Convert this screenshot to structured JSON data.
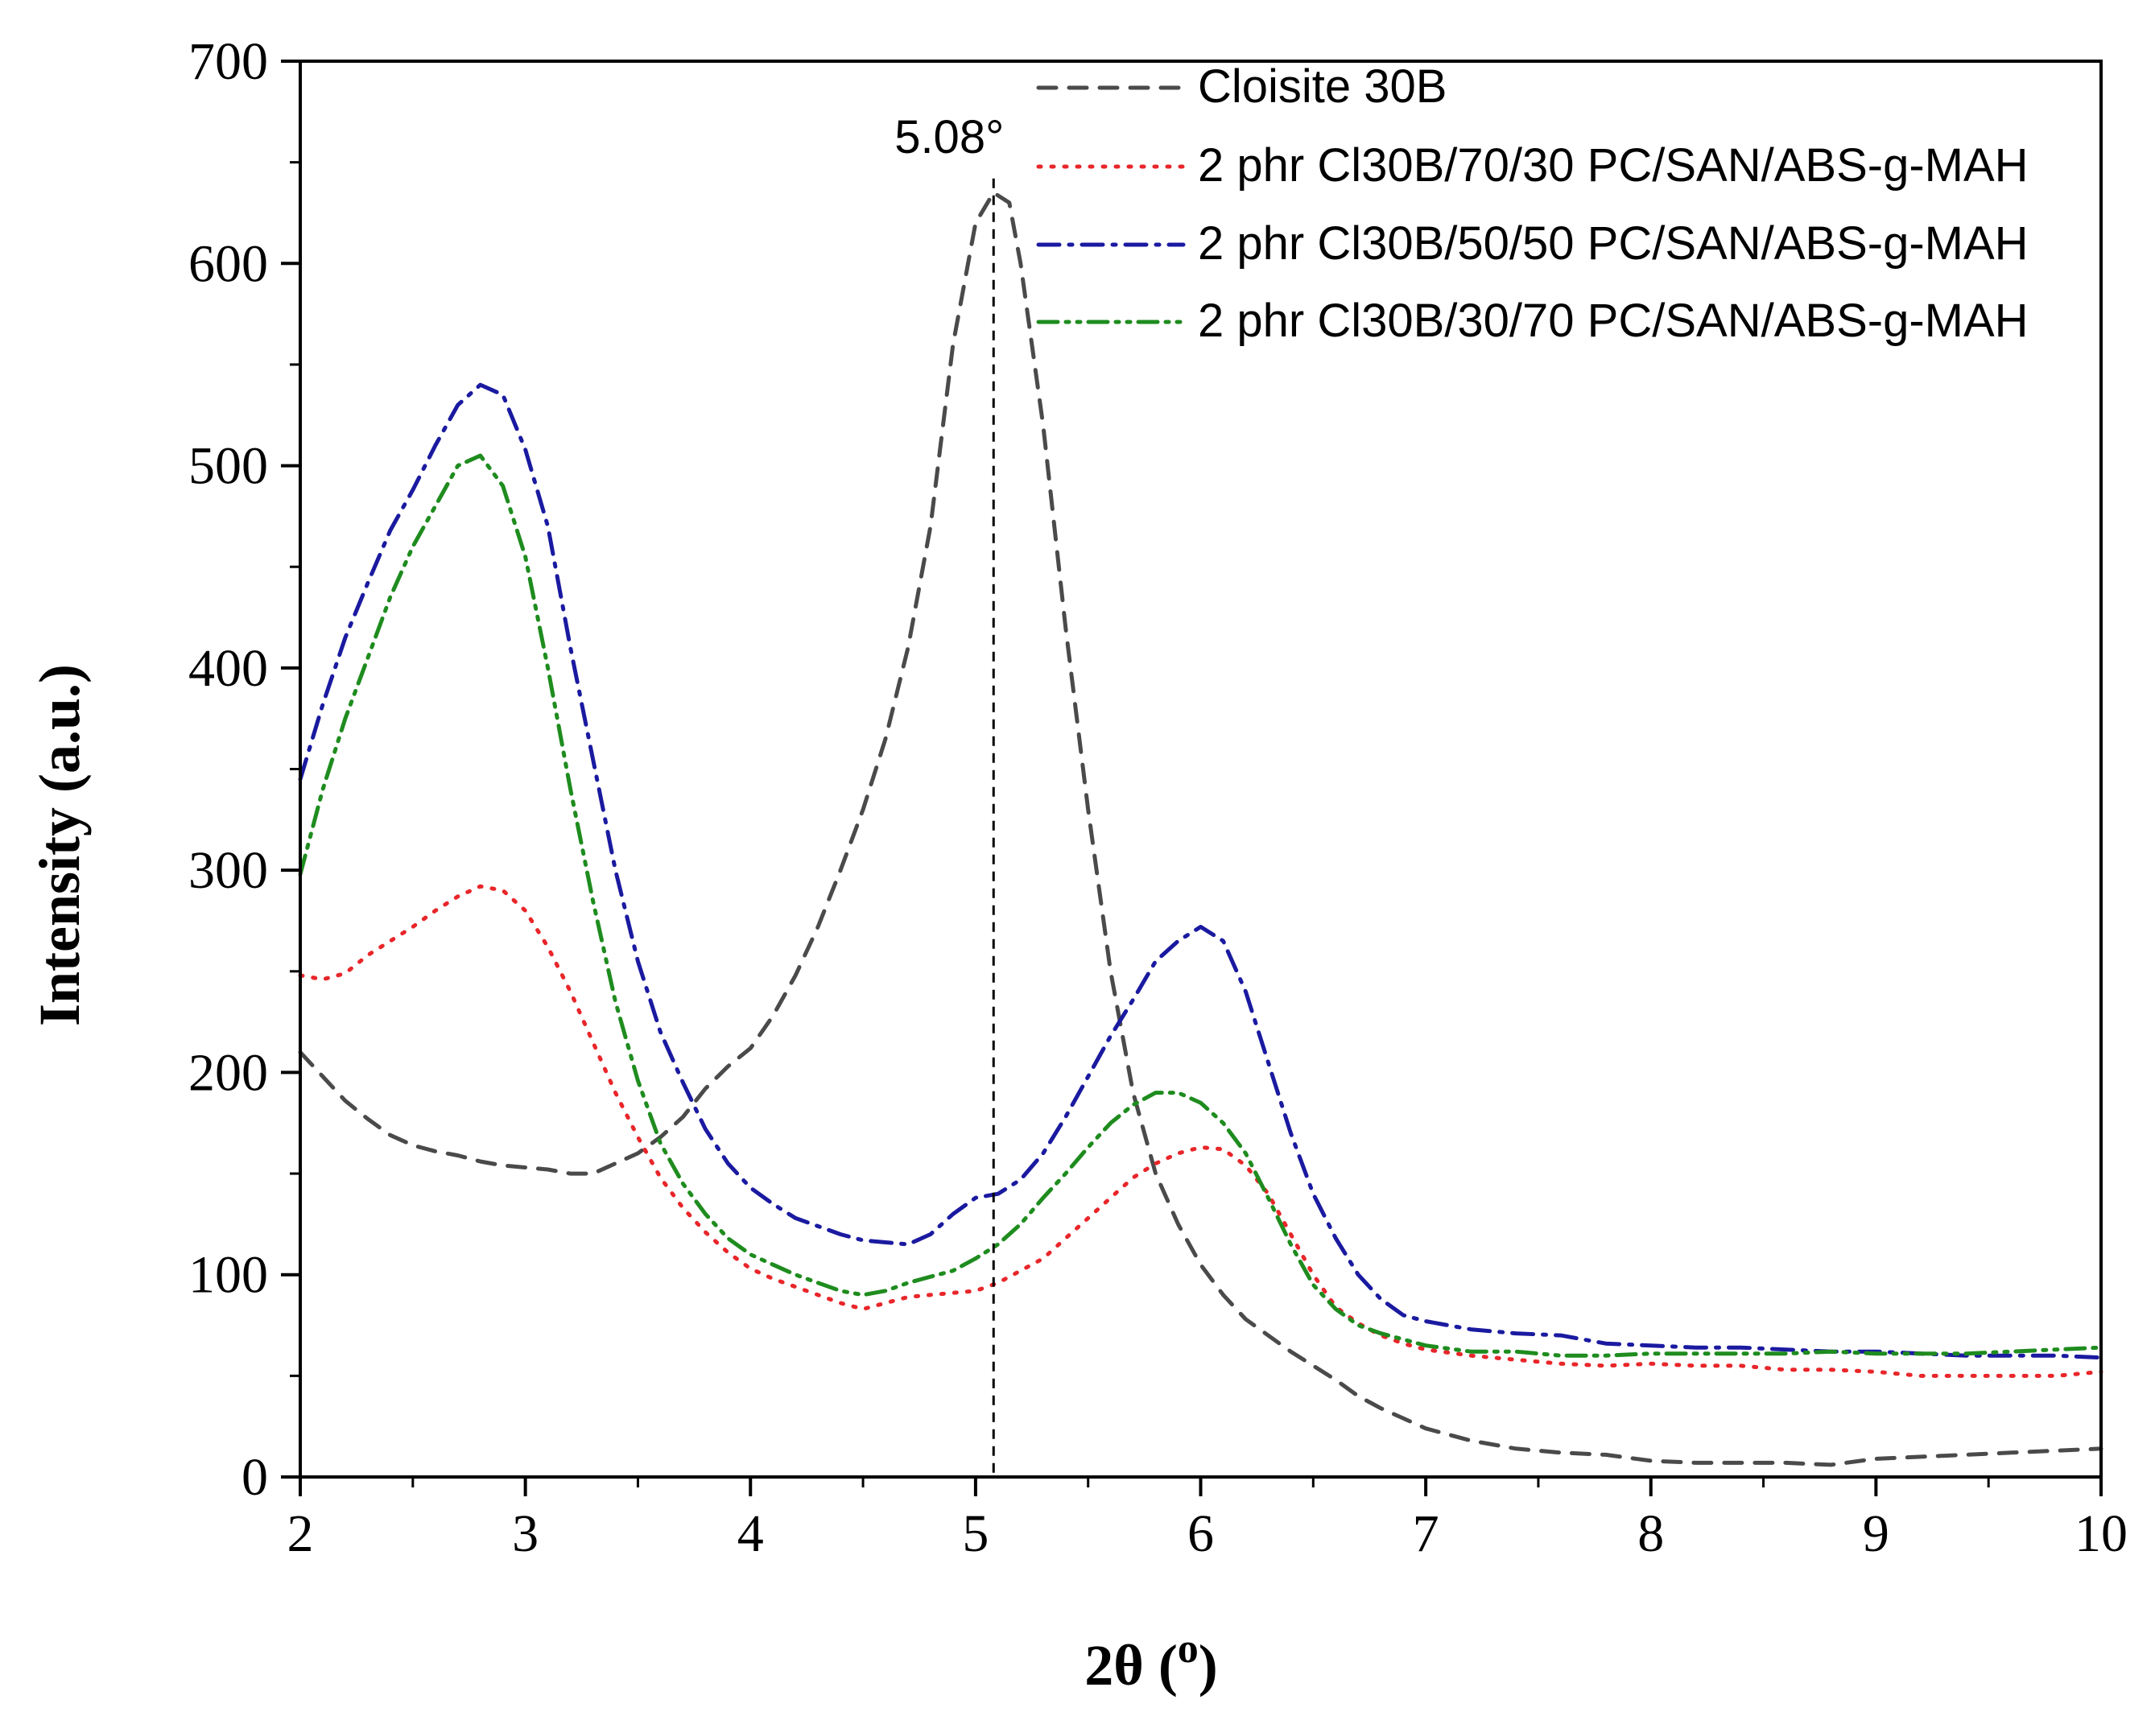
{
  "chart_data": {
    "type": "line",
    "title": "",
    "xlabel": "2θ",
    "xlabel_unit": "o",
    "ylabel": "Intensity (a.u.)",
    "xlim": [
      2,
      10
    ],
    "ylim": [
      0,
      700
    ],
    "xticks": [
      2,
      3,
      4,
      5,
      6,
      7,
      8,
      9,
      10
    ],
    "yticks": [
      0,
      100,
      200,
      300,
      400,
      500,
      600,
      700
    ],
    "grid": false,
    "legend_position": "top-right",
    "annotation": {
      "label": "5.08°",
      "x": 5.08
    },
    "series": [
      {
        "name": "Cloisite 30B",
        "color": "#4a4a4a",
        "dash": "dashed",
        "x": [
          2.0,
          2.1,
          2.2,
          2.3,
          2.4,
          2.5,
          2.6,
          2.7,
          2.8,
          2.9,
          3.0,
          3.1,
          3.2,
          3.3,
          3.4,
          3.5,
          3.6,
          3.7,
          3.8,
          3.9,
          4.0,
          4.1,
          4.2,
          4.3,
          4.4,
          4.5,
          4.6,
          4.7,
          4.8,
          4.9,
          5.0,
          5.08,
          5.15,
          5.2,
          5.3,
          5.4,
          5.5,
          5.6,
          5.7,
          5.8,
          5.9,
          6.0,
          6.1,
          6.2,
          6.3,
          6.4,
          6.5,
          6.6,
          6.7,
          6.8,
          6.9,
          7.0,
          7.2,
          7.4,
          7.6,
          7.8,
          8.0,
          8.2,
          8.4,
          8.6,
          8.8,
          9.0,
          9.2,
          9.4,
          9.6,
          9.8,
          10.0
        ],
        "values": [
          210,
          198,
          186,
          177,
          169,
          164,
          161,
          159,
          156,
          154,
          153,
          152,
          150,
          150,
          155,
          160,
          168,
          178,
          192,
          203,
          212,
          228,
          248,
          272,
          300,
          330,
          365,
          410,
          470,
          560,
          620,
          635,
          630,
          600,
          520,
          420,
          330,
          250,
          190,
          150,
          125,
          105,
          90,
          78,
          70,
          62,
          55,
          48,
          40,
          34,
          29,
          24,
          18,
          14,
          12,
          11,
          8,
          7,
          7,
          7,
          6,
          9,
          10,
          11,
          12,
          13,
          14
        ]
      },
      {
        "name": "2 phr Cl30B/70/30 PC/SAN/ABS-g-MAH",
        "color": "#e8262a",
        "dash": "dotted",
        "x": [
          2.0,
          2.1,
          2.2,
          2.3,
          2.4,
          2.5,
          2.6,
          2.7,
          2.8,
          2.9,
          3.0,
          3.1,
          3.2,
          3.3,
          3.4,
          3.5,
          3.6,
          3.7,
          3.8,
          3.9,
          4.0,
          4.1,
          4.2,
          4.3,
          4.4,
          4.5,
          4.6,
          4.7,
          4.8,
          4.9,
          5.0,
          5.1,
          5.2,
          5.3,
          5.4,
          5.5,
          5.6,
          5.7,
          5.8,
          5.9,
          6.0,
          6.1,
          6.2,
          6.3,
          6.4,
          6.5,
          6.6,
          6.7,
          6.8,
          6.9,
          7.0,
          7.2,
          7.4,
          7.6,
          7.8,
          8.0,
          8.2,
          8.4,
          8.6,
          8.8,
          9.0,
          9.2,
          9.4,
          9.6,
          9.8,
          10.0
        ],
        "values": [
          248,
          246,
          249,
          258,
          265,
          272,
          280,
          287,
          292,
          290,
          280,
          262,
          240,
          215,
          190,
          168,
          148,
          133,
          121,
          111,
          103,
          98,
          94,
          90,
          86,
          83,
          86,
          89,
          90,
          91,
          92,
          96,
          102,
          108,
          118,
          128,
          138,
          148,
          155,
          160,
          163,
          162,
          154,
          140,
          120,
          100,
          84,
          76,
          70,
          66,
          63,
          60,
          58,
          56,
          55,
          56,
          55,
          55,
          53,
          53,
          52,
          50,
          50,
          50,
          50,
          52
        ]
      },
      {
        "name": "2 phr Cl30B/50/50 PC/SAN/ABS-g-MAH",
        "color": "#1a1aa0",
        "dash": "dashdot",
        "x": [
          2.0,
          2.1,
          2.2,
          2.3,
          2.4,
          2.5,
          2.6,
          2.7,
          2.8,
          2.9,
          3.0,
          3.1,
          3.2,
          3.3,
          3.4,
          3.5,
          3.6,
          3.7,
          3.8,
          3.9,
          4.0,
          4.1,
          4.2,
          4.3,
          4.4,
          4.5,
          4.6,
          4.7,
          4.8,
          4.9,
          5.0,
          5.1,
          5.2,
          5.3,
          5.4,
          5.5,
          5.6,
          5.7,
          5.8,
          5.9,
          6.0,
          6.1,
          6.2,
          6.3,
          6.4,
          6.5,
          6.6,
          6.7,
          6.8,
          6.9,
          7.0,
          7.2,
          7.4,
          7.6,
          7.8,
          8.0,
          8.2,
          8.4,
          8.6,
          8.8,
          9.0,
          9.2,
          9.4,
          9.6,
          9.8,
          10.0
        ],
        "values": [
          345,
          382,
          415,
          442,
          468,
          488,
          510,
          530,
          540,
          535,
          508,
          470,
          410,
          355,
          300,
          255,
          220,
          195,
          172,
          155,
          143,
          135,
          128,
          124,
          120,
          117,
          116,
          115,
          120,
          130,
          138,
          140,
          147,
          160,
          178,
          198,
          218,
          236,
          255,
          265,
          272,
          265,
          240,
          205,
          170,
          140,
          118,
          100,
          88,
          80,
          77,
          73,
          71,
          70,
          66,
          65,
          64,
          64,
          63,
          62,
          62,
          61,
          60,
          60,
          60,
          59
        ]
      },
      {
        "name": "2 phr Cl30B/30/70 PC/SAN/ABS-g-MAH",
        "color": "#1e8c1e",
        "dash": "dashdotdot",
        "x": [
          2.0,
          2.1,
          2.2,
          2.3,
          2.4,
          2.5,
          2.6,
          2.7,
          2.8,
          2.9,
          3.0,
          3.1,
          3.2,
          3.3,
          3.4,
          3.5,
          3.6,
          3.7,
          3.8,
          3.9,
          4.0,
          4.1,
          4.2,
          4.3,
          4.4,
          4.5,
          4.6,
          4.7,
          4.8,
          4.9,
          5.0,
          5.1,
          5.2,
          5.3,
          5.4,
          5.5,
          5.6,
          5.7,
          5.8,
          5.9,
          6.0,
          6.1,
          6.2,
          6.3,
          6.4,
          6.5,
          6.6,
          6.7,
          6.8,
          6.9,
          7.0,
          7.2,
          7.4,
          7.6,
          7.8,
          8.0,
          8.2,
          8.4,
          8.6,
          8.8,
          9.0,
          9.2,
          9.4,
          9.6,
          9.8,
          10.0
        ],
        "values": [
          298,
          340,
          375,
          405,
          435,
          460,
          480,
          500,
          505,
          490,
          455,
          400,
          340,
          285,
          235,
          196,
          165,
          145,
          130,
          118,
          110,
          105,
          100,
          96,
          92,
          90,
          92,
          96,
          99,
          102,
          108,
          115,
          125,
          138,
          150,
          163,
          175,
          184,
          190,
          190,
          185,
          175,
          160,
          138,
          115,
          95,
          83,
          75,
          71,
          68,
          65,
          62,
          62,
          60,
          60,
          61,
          61,
          61,
          61,
          62,
          61,
          61,
          61,
          62,
          63,
          64
        ]
      }
    ]
  }
}
